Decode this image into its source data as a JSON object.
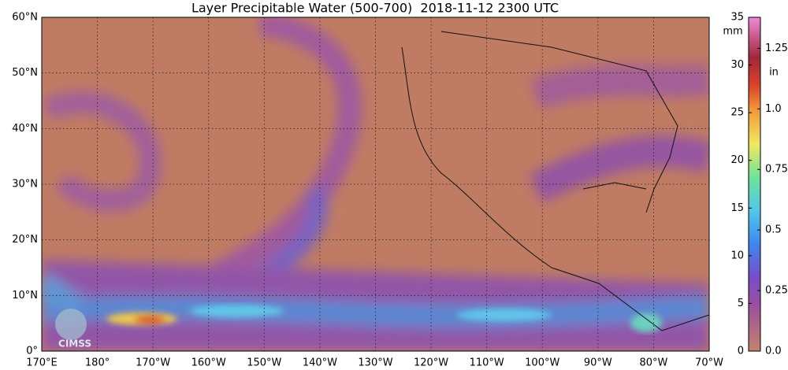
{
  "title": "Layer Precipitable Water (500-700)  2018-11-12 2300 UTC",
  "map": {
    "lat_labels": [
      "60°N",
      "50°N",
      "40°N",
      "30°N",
      "20°N",
      "10°N",
      "0°"
    ],
    "lon_labels": [
      "170°E",
      "180°",
      "170°W",
      "160°W",
      "150°W",
      "140°W",
      "130°W",
      "120°W",
      "110°W",
      "100°W",
      "90°W",
      "80°W",
      "70°W"
    ]
  },
  "colorbar": {
    "mm_label": "mm",
    "in_label": "in",
    "mm_lim": [
      0,
      35
    ],
    "mm_ticks": [
      0,
      5,
      10,
      15,
      20,
      25,
      30,
      35
    ],
    "in_lim": [
      0,
      1.378
    ],
    "in_ticks": [
      {
        "value": 0,
        "label": "0.0"
      },
      0.25,
      0.5,
      0.75,
      {
        "value": 1,
        "label": "1.0"
      },
      1.25
    ]
  },
  "logo": "CIMSS"
}
